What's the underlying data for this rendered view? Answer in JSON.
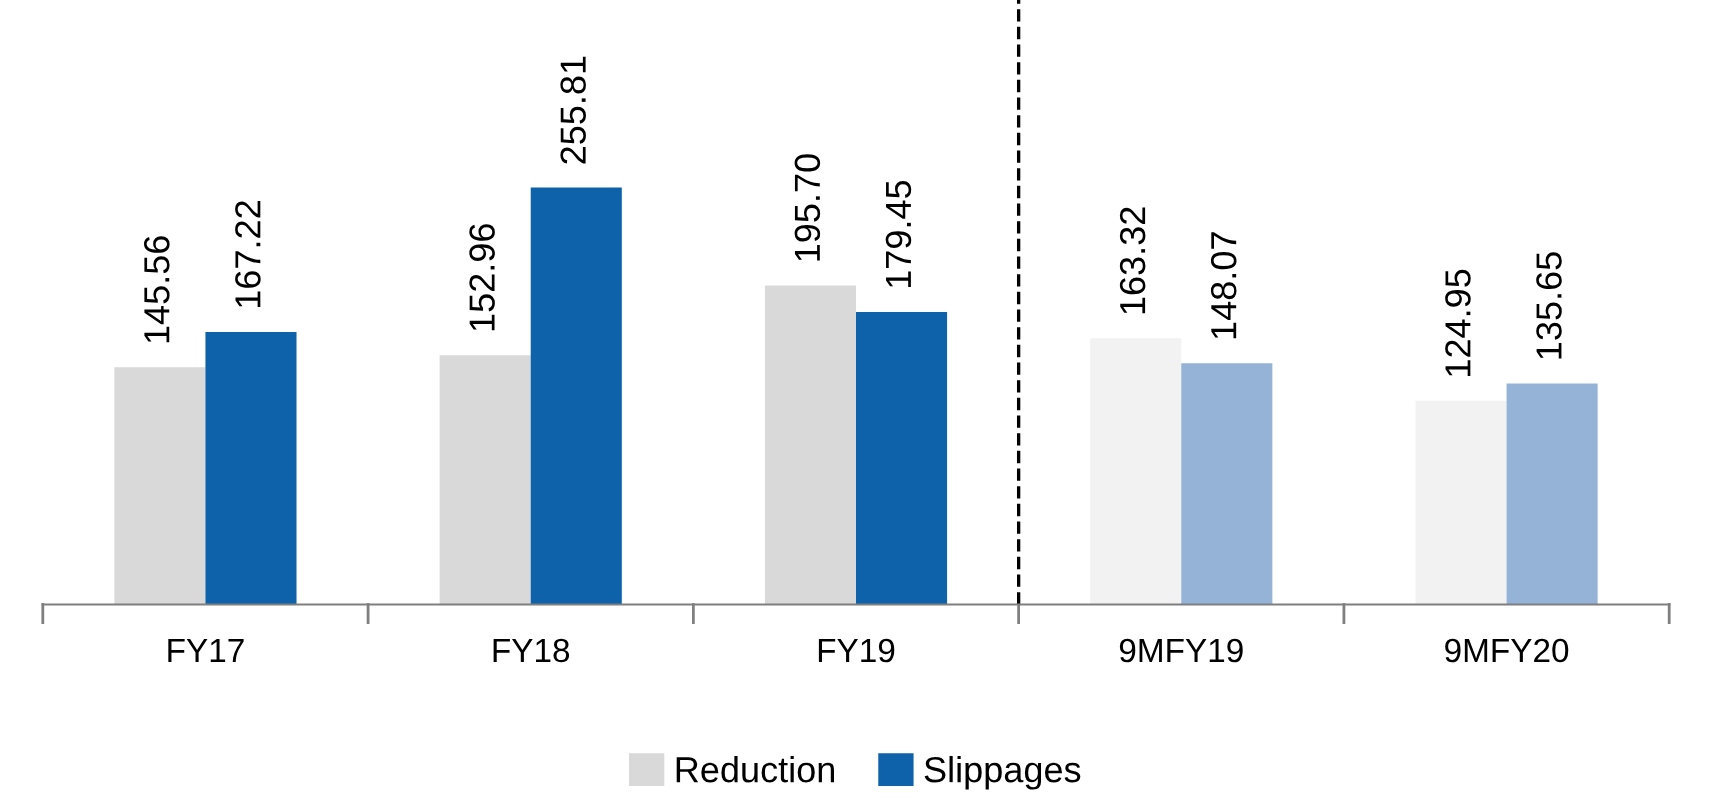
{
  "chart_data": {
    "type": "bar",
    "categories": [
      "FY17",
      "FY18",
      "FY19",
      "9MFY19",
      "9MFY20"
    ],
    "series": [
      {
        "name": "Reduction",
        "color": "#d9d9d9",
        "colors": [
          "#d9d9d9",
          "#d9d9d9",
          "#d9d9d9",
          "#f2f2f2",
          "#f2f2f2"
        ],
        "values": [
          145.56,
          152.96,
          195.7,
          163.32,
          124.95
        ],
        "value_labels": [
          "145.56",
          "152.96",
          "195.70",
          "163.32",
          "124.95"
        ]
      },
      {
        "name": "Slippages",
        "color": "#0d62aa",
        "colors": [
          "#0d62aa",
          "#0d62aa",
          "#0d62aa",
          "#95b3d7",
          "#95b3d7"
        ],
        "values": [
          167.22,
          255.81,
          179.45,
          148.07,
          135.65
        ],
        "value_labels": [
          "167.22",
          "255.81",
          "179.45",
          "148.07",
          "135.65"
        ]
      }
    ],
    "tick_labels": "x",
    "legend": "bottom",
    "grid": false
  }
}
